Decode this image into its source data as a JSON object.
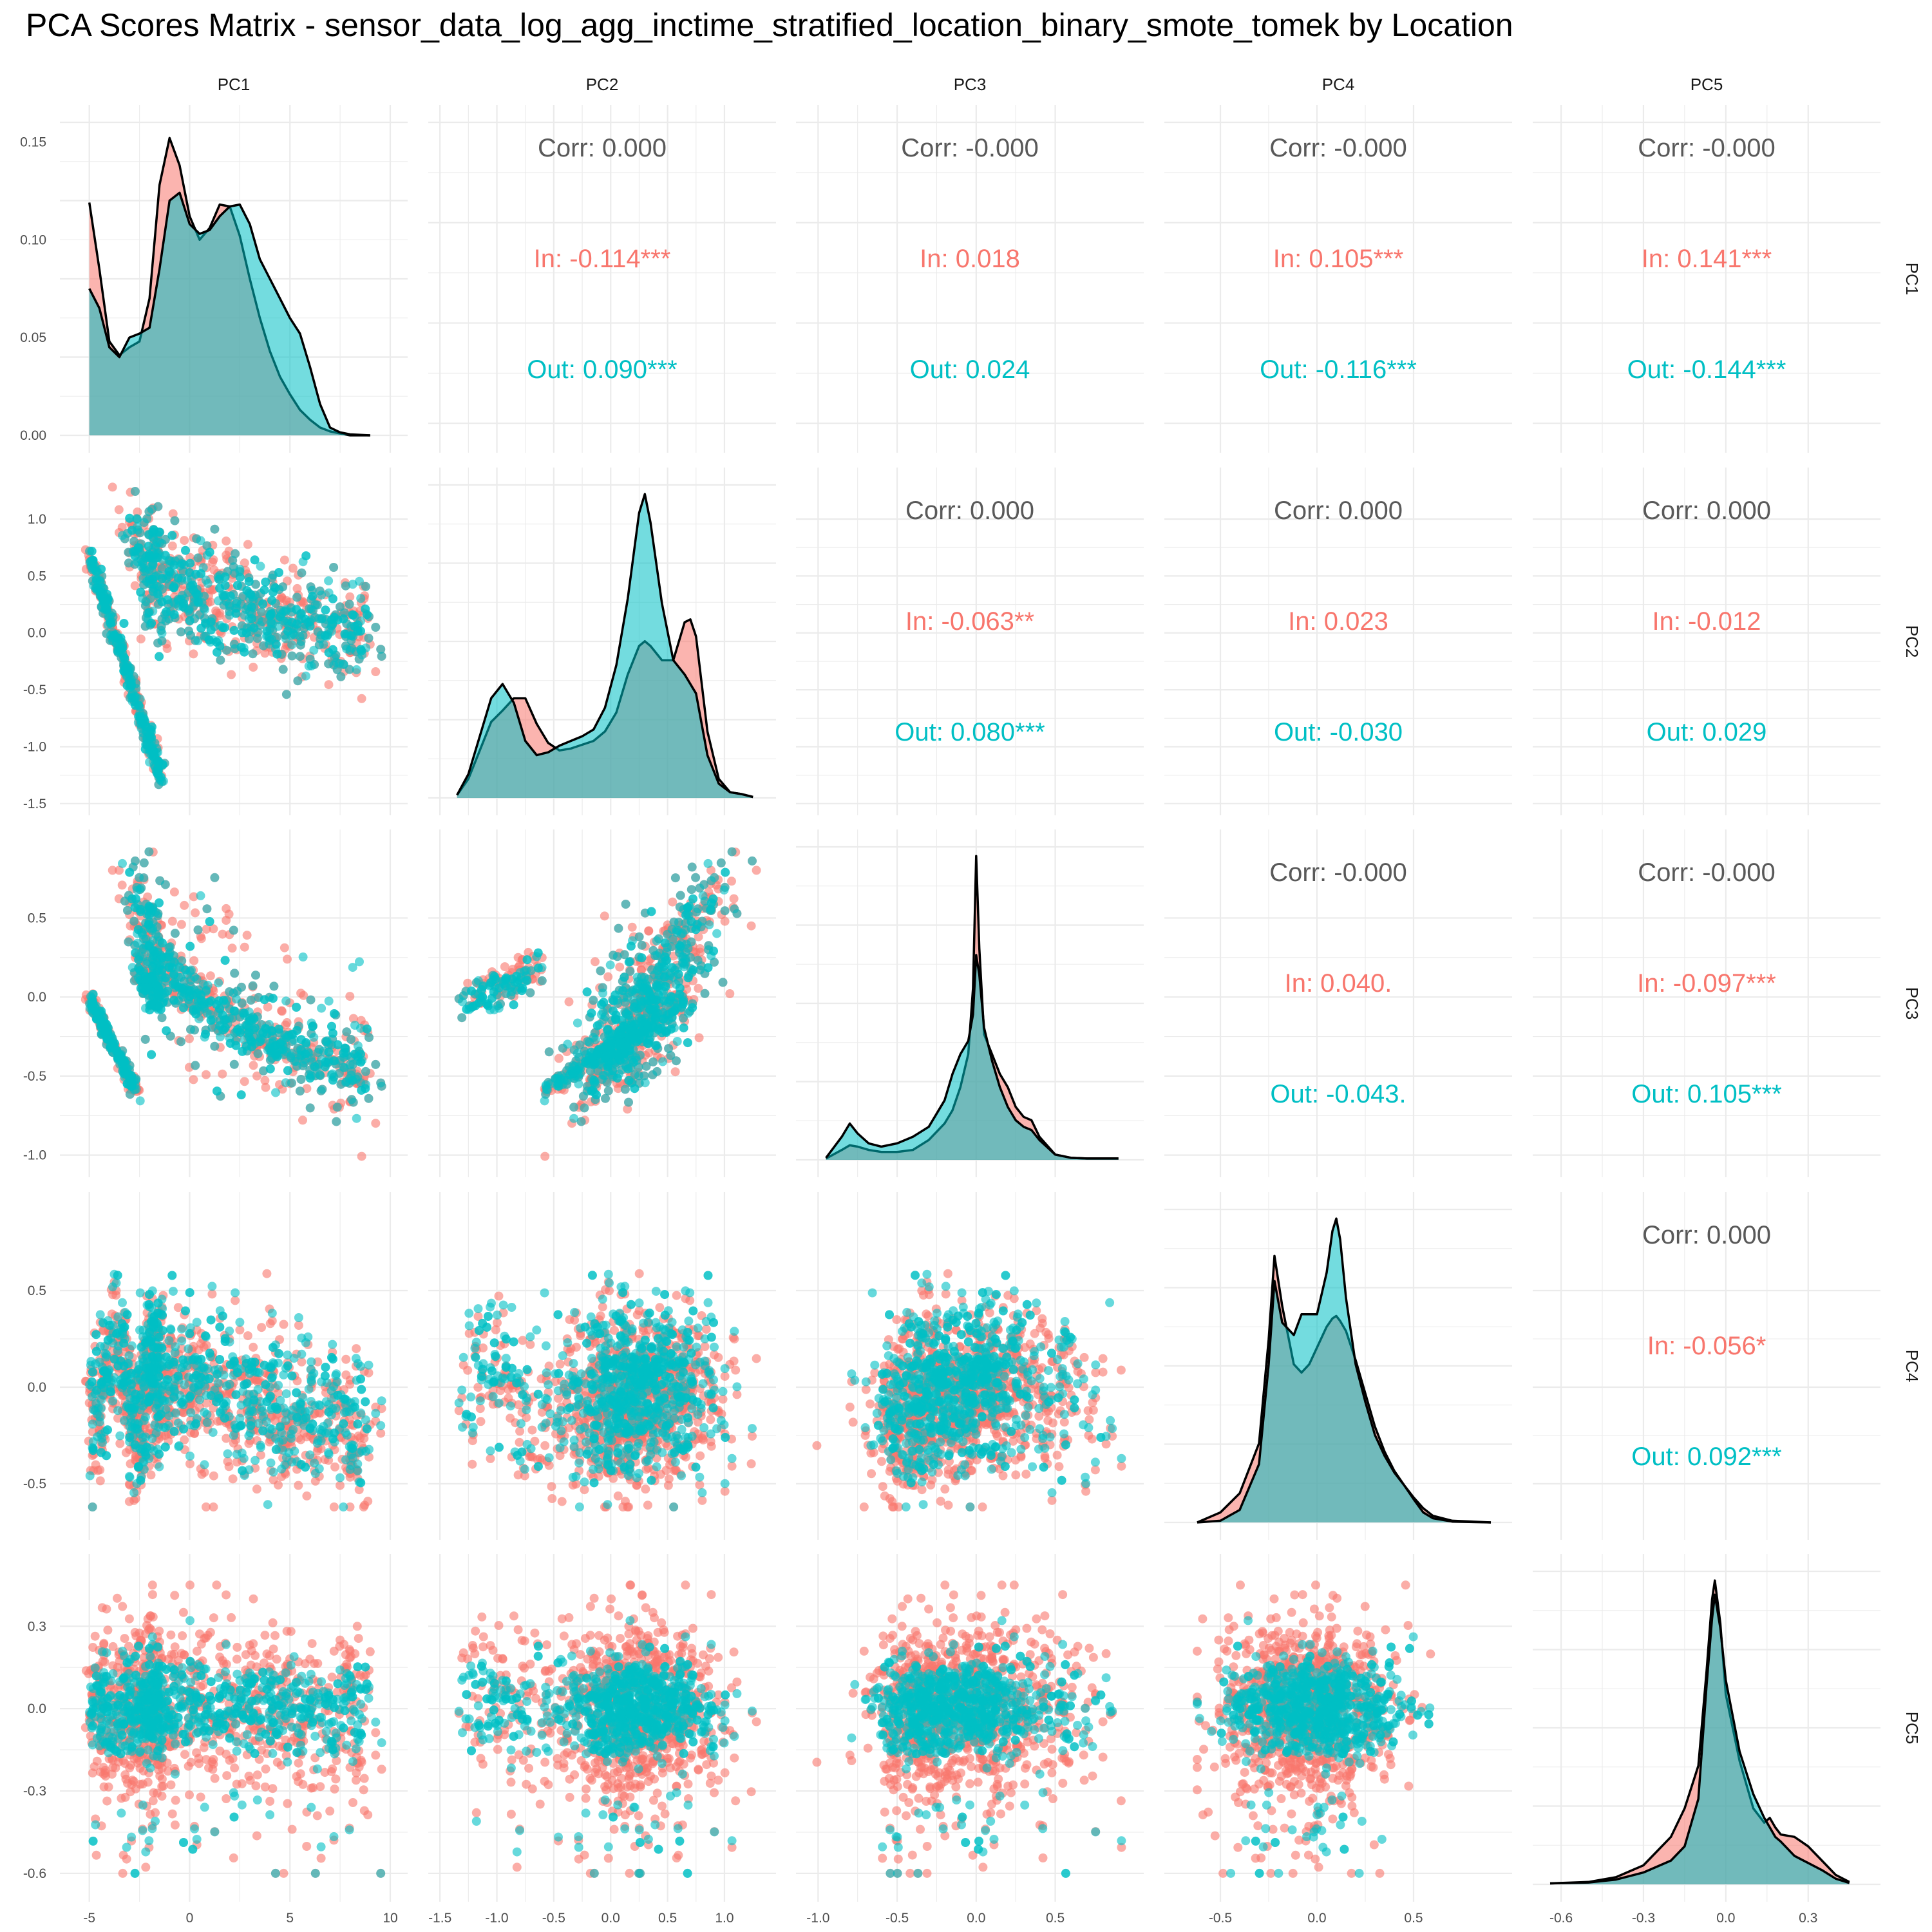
{
  "title": "PCA Scores Matrix - sensor_data_log_agg_inctime_stratified_location_binary_smote_tomek by Location",
  "colors": {
    "In": "#F8766D",
    "Out": "#00BFC4",
    "overall": "#595959",
    "grid": "#EBEBEB"
  },
  "chart_data": {
    "type": "scatter",
    "variables": [
      "PC1",
      "PC2",
      "PC3",
      "PC4",
      "PC5"
    ],
    "groups": [
      "In",
      "Out"
    ],
    "axes": {
      "PC1": {
        "lim": [
          -5.6,
          10.0
        ],
        "ticks": [
          -5,
          0,
          5,
          10
        ]
      },
      "PC2": {
        "lim": [
          -1.45,
          1.3
        ],
        "ticks": [
          -1.5,
          -1.0,
          -0.5,
          0.0,
          0.5,
          1.0
        ]
      },
      "PC3": {
        "lim": [
          -1.03,
          0.95
        ],
        "ticks": [
          -1.0,
          -0.5,
          0.0,
          0.5
        ]
      },
      "PC4": {
        "lim": [
          -0.7,
          0.92
        ],
        "ticks": [
          -0.5,
          0.0,
          0.5
        ]
      },
      "PC5": {
        "lim": [
          -0.64,
          0.5
        ],
        "ticks": [
          -0.6,
          -0.3,
          0.0,
          0.3
        ]
      }
    },
    "tick_labels": {
      "PC1": [
        "-5",
        "0",
        "5",
        "10"
      ],
      "PC2": [
        "-1.5",
        "-1.0",
        "-0.5",
        "0.0",
        "0.5",
        "1.0"
      ],
      "PC3": [
        "-1.0",
        "-0.5",
        "0.0",
        "0.5"
      ],
      "PC4": [
        "-0.5",
        "0.0",
        "0.5"
      ],
      "PC5": [
        "-0.6",
        "-0.3",
        "0.0",
        "0.3"
      ]
    },
    "density_axis_PC1": {
      "lim": [
        0,
        0.16
      ],
      "ticks": [
        0.0,
        0.05,
        0.1,
        0.15
      ],
      "tick_labels": [
        "0.00",
        "0.05",
        "0.10",
        "0.15"
      ]
    },
    "correlations": [
      {
        "row": "PC1",
        "col": "PC2",
        "corr": "Corr: 0.000",
        "in": "In: -0.114***",
        "out": "Out: 0.090***"
      },
      {
        "row": "PC1",
        "col": "PC3",
        "corr": "Corr: -0.000",
        "in": "In: 0.018",
        "out": "Out: 0.024"
      },
      {
        "row": "PC1",
        "col": "PC4",
        "corr": "Corr: -0.000",
        "in": "In: 0.105***",
        "out": "Out: -0.116***"
      },
      {
        "row": "PC1",
        "col": "PC5",
        "corr": "Corr: -0.000",
        "in": "In: 0.141***",
        "out": "Out: -0.144***"
      },
      {
        "row": "PC2",
        "col": "PC3",
        "corr": "Corr: 0.000",
        "in": "In: -0.063**",
        "out": "Out: 0.080***"
      },
      {
        "row": "PC2",
        "col": "PC4",
        "corr": "Corr: 0.000",
        "in": "In: 0.023",
        "out": "Out: -0.030"
      },
      {
        "row": "PC2",
        "col": "PC5",
        "corr": "Corr: 0.000",
        "in": "In: -0.012",
        "out": "Out: 0.029"
      },
      {
        "row": "PC3",
        "col": "PC4",
        "corr": "Corr: -0.000",
        "in": "In: 0.040.",
        "out": "Out: -0.043."
      },
      {
        "row": "PC3",
        "col": "PC5",
        "corr": "Corr: -0.000",
        "in": "In: -0.097***",
        "out": "Out: 0.105***"
      },
      {
        "row": "PC4",
        "col": "PC5",
        "corr": "Corr: 0.000",
        "in": "In: -0.056*",
        "out": "Out: 0.092***"
      }
    ],
    "densities": {
      "PC1": {
        "x": [
          -5,
          -4.5,
          -4,
          -3.5,
          -3,
          -2.5,
          -2,
          -1.5,
          -1,
          -0.5,
          0,
          0.5,
          1,
          1.5,
          2,
          2.5,
          3,
          3.5,
          4,
          4.5,
          5,
          5.5,
          6,
          6.5,
          7,
          7.5,
          8,
          9
        ],
        "In": [
          0.119,
          0.085,
          0.048,
          0.041,
          0.045,
          0.048,
          0.07,
          0.128,
          0.152,
          0.138,
          0.112,
          0.1,
          0.106,
          0.118,
          0.117,
          0.102,
          0.08,
          0.06,
          0.043,
          0.03,
          0.021,
          0.013,
          0.008,
          0.004,
          0.002,
          0.001,
          0.0,
          0.0
        ],
        "Out": [
          0.075,
          0.065,
          0.045,
          0.04,
          0.05,
          0.052,
          0.055,
          0.085,
          0.12,
          0.124,
          0.108,
          0.103,
          0.105,
          0.112,
          0.117,
          0.118,
          0.108,
          0.09,
          0.08,
          0.07,
          0.06,
          0.052,
          0.035,
          0.016,
          0.004,
          0.0015,
          0.0005,
          0.0
        ]
      },
      "PC2": {
        "x": [
          -1.35,
          -1.25,
          -1.15,
          -1.05,
          -0.95,
          -0.85,
          -0.75,
          -0.65,
          -0.55,
          -0.45,
          -0.35,
          -0.25,
          -0.15,
          -0.05,
          0.05,
          0.15,
          0.25,
          0.3,
          0.35,
          0.45,
          0.55,
          0.65,
          0.7,
          0.75,
          0.85,
          0.95,
          1.05,
          1.15,
          1.25
        ],
        "In": [
          0.03,
          0.2,
          0.5,
          0.8,
          0.92,
          1.05,
          1.05,
          0.78,
          0.58,
          0.5,
          0.52,
          0.56,
          0.6,
          0.7,
          0.9,
          1.3,
          1.6,
          1.65,
          1.6,
          1.45,
          1.45,
          1.85,
          1.88,
          1.7,
          0.7,
          0.2,
          0.06,
          0.04,
          0.01
        ],
        "Out": [
          0.03,
          0.25,
          0.65,
          1.05,
          1.2,
          1.0,
          0.6,
          0.45,
          0.48,
          0.55,
          0.6,
          0.65,
          0.72,
          0.95,
          1.4,
          2.1,
          3.0,
          3.2,
          2.9,
          2.05,
          1.45,
          1.3,
          1.2,
          1.1,
          0.45,
          0.15,
          0.06,
          0.04,
          0.01
        ]
      },
      "PC3": {
        "x": [
          -0.95,
          -0.85,
          -0.8,
          -0.75,
          -0.68,
          -0.6,
          -0.5,
          -0.4,
          -0.3,
          -0.2,
          -0.15,
          -0.1,
          -0.05,
          -0.02,
          0.0,
          0.02,
          0.05,
          0.1,
          0.15,
          0.2,
          0.25,
          0.3,
          0.35,
          0.4,
          0.5,
          0.6,
          0.7,
          0.8,
          0.9
        ],
        "In": [
          0.02,
          0.15,
          0.22,
          0.2,
          0.15,
          0.12,
          0.12,
          0.15,
          0.3,
          0.55,
          0.75,
          1.1,
          1.6,
          2.6,
          4.6,
          3.2,
          1.9,
          1.6,
          1.3,
          1.1,
          0.8,
          0.65,
          0.6,
          0.35,
          0.08,
          0.03,
          0.02,
          0.02,
          0.02
        ],
        "Out": [
          0.03,
          0.35,
          0.55,
          0.4,
          0.25,
          0.2,
          0.25,
          0.35,
          0.5,
          0.9,
          1.3,
          1.6,
          1.8,
          2.2,
          3.1,
          2.8,
          2.0,
          1.5,
          1.1,
          0.8,
          0.6,
          0.5,
          0.45,
          0.3,
          0.08,
          0.03,
          0.02,
          0.02,
          0.02
        ]
      },
      "PC4": {
        "x": [
          -0.62,
          -0.5,
          -0.4,
          -0.3,
          -0.25,
          -0.22,
          -0.18,
          -0.12,
          -0.08,
          -0.04,
          0.0,
          0.05,
          0.08,
          0.1,
          0.12,
          0.15,
          0.2,
          0.25,
          0.3,
          0.35,
          0.4,
          0.45,
          0.5,
          0.55,
          0.6,
          0.7,
          0.9
        ],
        "In": [
          0.0,
          0.12,
          0.35,
          0.95,
          2.2,
          3.2,
          2.6,
          1.9,
          1.8,
          1.9,
          2.1,
          2.35,
          2.45,
          2.48,
          2.42,
          2.3,
          1.95,
          1.55,
          1.15,
          0.85,
          0.62,
          0.45,
          0.3,
          0.17,
          0.08,
          0.02,
          0.0
        ],
        "Out": [
          0.0,
          0.02,
          0.15,
          0.7,
          1.9,
          2.9,
          2.4,
          2.25,
          2.5,
          2.5,
          2.5,
          3.0,
          3.5,
          3.65,
          3.4,
          2.7,
          1.9,
          1.45,
          1.05,
          0.8,
          0.6,
          0.45,
          0.28,
          0.12,
          0.05,
          0.01,
          0.0
        ]
      },
      "PC5": {
        "x": [
          -0.64,
          -0.5,
          -0.4,
          -0.3,
          -0.2,
          -0.15,
          -0.1,
          -0.07,
          -0.05,
          -0.04,
          -0.02,
          0.0,
          0.05,
          0.1,
          0.14,
          0.16,
          0.18,
          0.2,
          0.25,
          0.3,
          0.35,
          0.4,
          0.45
        ],
        "In": [
          0.02,
          0.05,
          0.15,
          0.4,
          1.0,
          1.6,
          2.5,
          4.5,
          6.0,
          6.4,
          5.5,
          4.0,
          2.6,
          1.6,
          1.3,
          1.4,
          1.2,
          1.05,
          1.0,
          0.8,
          0.5,
          0.2,
          0.05
        ],
        "Out": [
          0.02,
          0.04,
          0.1,
          0.25,
          0.5,
          0.8,
          1.8,
          4.2,
          5.6,
          6.1,
          5.4,
          4.3,
          2.8,
          1.9,
          1.4,
          1.2,
          1.0,
          0.9,
          0.6,
          0.45,
          0.3,
          0.12,
          0.03
        ]
      }
    },
    "scatter_structure": {
      "PC1": [
        {
          "p": 0.3,
          "t": [
            -5.0,
            -1.4
          ],
          "a": [
            -1.85,
            0.1
          ],
          "n": [
            0.12,
            0.02,
            0.2,
            0.06
          ]
        },
        {
          "p": 0.7,
          "t": [
            -2.7,
            9.5
          ],
          "a": [
            0.2,
            0.7
          ],
          "n": [
            1.2,
            0.2,
            0.35,
            0.12
          ]
        }
      ],
      "PC2": [
        {
          "p": 0.3,
          "t": [
            -1.35,
            -0.55
          ],
          "a": [
            0.06,
            0.03
          ],
          "n": [
            0.08,
            0.12,
            0.2,
            0.06
          ]
        },
        {
          "p": 0.7,
          "t": [
            -0.55,
            1.25
          ],
          "a": [
            0.0,
            0.55
          ],
          "n": [
            0.45,
            0.08,
            0.32,
            0.12
          ]
        }
      ]
    }
  }
}
